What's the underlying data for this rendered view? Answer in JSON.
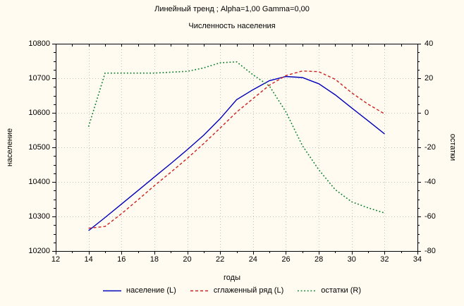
{
  "chart_data": {
    "type": "line",
    "title": "Линейный тренд ; Alpha=1,00 Gamma=0,00",
    "subtitle": "Численность населения",
    "xlabel": "годы",
    "grid": "dotted",
    "legend_position": "bottom",
    "x_axis": {
      "min": 12,
      "max": 34,
      "tick_step": 2,
      "minor_step": 1,
      "ticks": [
        12,
        14,
        16,
        18,
        20,
        22,
        24,
        26,
        28,
        30,
        32,
        34
      ]
    },
    "left_axis": {
      "label": "население",
      "min": 10200,
      "max": 10800,
      "tick_step": 100,
      "minor_step": 25,
      "ticks": [
        10200,
        10300,
        10400,
        10500,
        10600,
        10700,
        10800
      ]
    },
    "right_axis": {
      "label": "остатки",
      "min": -80,
      "max": 40,
      "tick_step": 20,
      "minor_step": 5,
      "ticks": [
        -80,
        -60,
        -40,
        -20,
        0,
        20,
        40
      ]
    },
    "x": [
      14,
      15,
      16,
      17,
      18,
      19,
      20,
      21,
      22,
      23,
      24,
      25,
      26,
      27,
      28,
      29,
      30,
      31,
      32
    ],
    "series": [
      {
        "name": "население (L)",
        "axis": "left",
        "color": "#0000BB",
        "style": "solid",
        "values": [
          10259,
          10297,
          10336,
          10375,
          10414,
          10453,
          10493,
          10535,
          10583,
          10638,
          10667,
          10693,
          10705,
          10702,
          10684,
          10652,
          10614,
          10577,
          10539
        ]
      },
      {
        "name": "сглаженный ряд (L)",
        "axis": "left",
        "color": "#CC2020",
        "style": "dashed",
        "values": [
          10266,
          10271,
          10308,
          10348,
          10389,
          10428,
          10468,
          10511,
          10556,
          10602,
          10641,
          10680,
          10708,
          10721,
          10719,
          10697,
          10658,
          10625,
          10597
        ]
      },
      {
        "name": "остатки (R)",
        "axis": "right",
        "color": "#0A7F2E",
        "style": "dotted",
        "values": [
          -8,
          23,
          23,
          23,
          23,
          23.5,
          24,
          26,
          29,
          29.5,
          22,
          15.5,
          0.5,
          -19,
          -33,
          -44.5,
          -51.5,
          -55,
          -58
        ]
      }
    ]
  },
  "colors": {
    "background": "#FFFBF0",
    "frame": "#000000",
    "grid": "#C3C3C3",
    "text": "#000000"
  }
}
